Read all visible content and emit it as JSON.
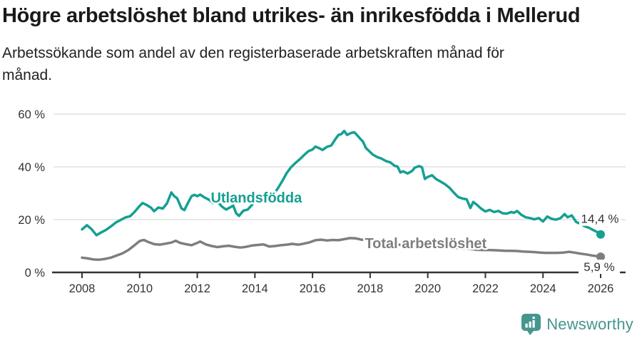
{
  "chart_data": {
    "type": "line",
    "title": "Högre arbetslöshet bland utrikes- än inrikesfödda i Mellerud",
    "subtitle": "Arbetssökande som andel av den registerbaserade arbetskraften månad för månad.",
    "xlabel": "",
    "ylabel": "",
    "xlim": [
      2008,
      2026
    ],
    "ylim": [
      0,
      60
    ],
    "grid": "horizontal",
    "x_ticks": [
      2008,
      2010,
      2012,
      2014,
      2016,
      2018,
      2020,
      2022,
      2024,
      2026
    ],
    "x_tick_labels": [
      "2008",
      "2010",
      "2012",
      "2014",
      "2016",
      "2018",
      "2020",
      "2022",
      "2024",
      "2026"
    ],
    "y_ticks": [
      0,
      20,
      40,
      60
    ],
    "y_tick_labels": [
      "0 %",
      "20 %",
      "40 %",
      "60 %"
    ],
    "series": [
      {
        "name": "Total arbetslöshet",
        "color": "#7E7E7E",
        "end_value_label": "5,9 %",
        "end_value": 5.9,
        "label_anchor": [
          2019.93,
          11.1
        ],
        "points": [
          [
            2008.0,
            5.6
          ],
          [
            2008.2,
            5.3
          ],
          [
            2008.4,
            4.9
          ],
          [
            2008.6,
            4.8
          ],
          [
            2008.8,
            5.1
          ],
          [
            2009.0,
            5.6
          ],
          [
            2009.2,
            6.4
          ],
          [
            2009.4,
            7.2
          ],
          [
            2009.6,
            8.4
          ],
          [
            2009.8,
            10.1
          ],
          [
            2010.0,
            11.9
          ],
          [
            2010.15,
            12.3
          ],
          [
            2010.3,
            11.5
          ],
          [
            2010.5,
            10.7
          ],
          [
            2010.7,
            10.5
          ],
          [
            2010.9,
            10.9
          ],
          [
            2011.1,
            11.3
          ],
          [
            2011.25,
            12.0
          ],
          [
            2011.4,
            11.2
          ],
          [
            2011.6,
            10.7
          ],
          [
            2011.8,
            10.3
          ],
          [
            2012.0,
            11.2
          ],
          [
            2012.1,
            11.7
          ],
          [
            2012.3,
            10.6
          ],
          [
            2012.5,
            10.0
          ],
          [
            2012.7,
            9.6
          ],
          [
            2012.9,
            9.9
          ],
          [
            2013.1,
            10.1
          ],
          [
            2013.3,
            9.7
          ],
          [
            2013.5,
            9.4
          ],
          [
            2013.7,
            9.7
          ],
          [
            2013.9,
            10.2
          ],
          [
            2014.1,
            10.4
          ],
          [
            2014.3,
            10.6
          ],
          [
            2014.5,
            9.8
          ],
          [
            2014.7,
            10.0
          ],
          [
            2014.9,
            10.3
          ],
          [
            2015.1,
            10.5
          ],
          [
            2015.3,
            10.8
          ],
          [
            2015.5,
            10.5
          ],
          [
            2015.7,
            10.9
          ],
          [
            2015.9,
            11.4
          ],
          [
            2016.1,
            12.2
          ],
          [
            2016.3,
            12.4
          ],
          [
            2016.5,
            12.1
          ],
          [
            2016.7,
            12.3
          ],
          [
            2016.9,
            12.2
          ],
          [
            2017.1,
            12.6
          ],
          [
            2017.3,
            13.0
          ],
          [
            2017.5,
            12.9
          ],
          [
            2017.7,
            12.4
          ],
          [
            2017.9,
            12.2
          ],
          [
            2018.1,
            11.8
          ],
          [
            2018.3,
            11.5
          ],
          [
            2018.5,
            11.3
          ],
          [
            2018.7,
            11.0
          ],
          [
            2018.9,
            10.7
          ],
          [
            2019.1,
            10.3
          ],
          [
            2019.3,
            10.1
          ],
          [
            2019.5,
            10.0
          ],
          [
            2019.7,
            9.9
          ],
          [
            2019.9,
            9.6
          ],
          [
            2020.1,
            9.8
          ],
          [
            2020.3,
            10.0
          ],
          [
            2020.5,
            9.9
          ],
          [
            2020.7,
            9.7
          ],
          [
            2020.9,
            9.4
          ],
          [
            2021.1,
            9.2
          ],
          [
            2021.3,
            9.0
          ],
          [
            2021.5,
            8.8
          ],
          [
            2021.7,
            8.6
          ],
          [
            2021.9,
            8.5
          ],
          [
            2022.1,
            8.5
          ],
          [
            2022.3,
            8.4
          ],
          [
            2022.5,
            8.3
          ],
          [
            2022.7,
            8.2
          ],
          [
            2022.9,
            8.2
          ],
          [
            2023.1,
            8.1
          ],
          [
            2023.3,
            7.9
          ],
          [
            2023.5,
            7.8
          ],
          [
            2023.7,
            7.7
          ],
          [
            2023.9,
            7.5
          ],
          [
            2024.1,
            7.4
          ],
          [
            2024.3,
            7.4
          ],
          [
            2024.5,
            7.4
          ],
          [
            2024.7,
            7.5
          ],
          [
            2024.9,
            7.8
          ],
          [
            2025.1,
            7.5
          ],
          [
            2025.3,
            7.1
          ],
          [
            2025.5,
            6.8
          ],
          [
            2025.7,
            6.4
          ],
          [
            2025.9,
            6.1
          ],
          [
            2026.0,
            5.9
          ]
        ]
      },
      {
        "name": "Utlandsfödda",
        "color": "#14A092",
        "end_value_label": "14,4 %",
        "end_value": 14.4,
        "label_anchor": [
          2014.05,
          28.4
        ],
        "points": [
          [
            2008.0,
            16.3
          ],
          [
            2008.17,
            17.9
          ],
          [
            2008.33,
            16.4
          ],
          [
            2008.5,
            14.1
          ],
          [
            2008.67,
            15.2
          ],
          [
            2008.83,
            16.1
          ],
          [
            2009.0,
            17.4
          ],
          [
            2009.17,
            18.9
          ],
          [
            2009.33,
            19.8
          ],
          [
            2009.5,
            20.8
          ],
          [
            2009.67,
            21.3
          ],
          [
            2009.83,
            23.0
          ],
          [
            2010.0,
            25.2
          ],
          [
            2010.1,
            26.3
          ],
          [
            2010.25,
            25.5
          ],
          [
            2010.4,
            24.5
          ],
          [
            2010.5,
            23.2
          ],
          [
            2010.65,
            24.6
          ],
          [
            2010.8,
            24.2
          ],
          [
            2010.95,
            26.2
          ],
          [
            2011.1,
            30.3
          ],
          [
            2011.2,
            28.9
          ],
          [
            2011.3,
            28.1
          ],
          [
            2011.45,
            24.3
          ],
          [
            2011.55,
            23.6
          ],
          [
            2011.7,
            26.8
          ],
          [
            2011.8,
            28.9
          ],
          [
            2011.9,
            29.4
          ],
          [
            2012.0,
            28.9
          ],
          [
            2012.1,
            29.5
          ],
          [
            2012.25,
            28.4
          ],
          [
            2012.4,
            27.6
          ],
          [
            2012.55,
            26.3
          ],
          [
            2012.7,
            26.9
          ],
          [
            2012.85,
            25.0
          ],
          [
            2013.0,
            23.8
          ],
          [
            2013.15,
            24.7
          ],
          [
            2013.25,
            25.3
          ],
          [
            2013.35,
            22.4
          ],
          [
            2013.45,
            21.4
          ],
          [
            2013.6,
            23.4
          ],
          [
            2013.75,
            23.8
          ],
          [
            2013.9,
            25.6
          ],
          [
            2014.05,
            27.6
          ],
          [
            2014.2,
            28.7
          ],
          [
            2014.35,
            28.2
          ],
          [
            2014.5,
            27.8
          ],
          [
            2014.65,
            29.6
          ],
          [
            2014.8,
            31.9
          ],
          [
            2014.95,
            34.6
          ],
          [
            2015.1,
            37.6
          ],
          [
            2015.25,
            39.8
          ],
          [
            2015.4,
            41.4
          ],
          [
            2015.55,
            42.8
          ],
          [
            2015.7,
            44.4
          ],
          [
            2015.85,
            45.9
          ],
          [
            2016.0,
            46.6
          ],
          [
            2016.1,
            47.7
          ],
          [
            2016.25,
            47.0
          ],
          [
            2016.35,
            46.4
          ],
          [
            2016.5,
            47.6
          ],
          [
            2016.65,
            48.1
          ],
          [
            2016.8,
            50.6
          ],
          [
            2016.9,
            52.1
          ],
          [
            2017.0,
            52.4
          ],
          [
            2017.1,
            53.6
          ],
          [
            2017.2,
            52.1
          ],
          [
            2017.35,
            52.9
          ],
          [
            2017.45,
            53.1
          ],
          [
            2017.55,
            52.0
          ],
          [
            2017.65,
            50.7
          ],
          [
            2017.75,
            49.6
          ],
          [
            2017.85,
            47.2
          ],
          [
            2017.95,
            46.1
          ],
          [
            2018.1,
            44.6
          ],
          [
            2018.25,
            43.7
          ],
          [
            2018.4,
            43.1
          ],
          [
            2018.55,
            42.2
          ],
          [
            2018.7,
            41.7
          ],
          [
            2018.85,
            40.4
          ],
          [
            2018.95,
            40.1
          ],
          [
            2019.05,
            37.9
          ],
          [
            2019.15,
            38.3
          ],
          [
            2019.3,
            37.5
          ],
          [
            2019.45,
            38.4
          ],
          [
            2019.55,
            39.7
          ],
          [
            2019.7,
            40.3
          ],
          [
            2019.8,
            39.8
          ],
          [
            2019.9,
            35.4
          ],
          [
            2020.0,
            36.2
          ],
          [
            2020.15,
            36.8
          ],
          [
            2020.3,
            35.3
          ],
          [
            2020.45,
            34.4
          ],
          [
            2020.6,
            33.4
          ],
          [
            2020.75,
            32.1
          ],
          [
            2020.9,
            30.3
          ],
          [
            2021.05,
            28.6
          ],
          [
            2021.2,
            28.0
          ],
          [
            2021.35,
            27.7
          ],
          [
            2021.48,
            24.4
          ],
          [
            2021.58,
            26.7
          ],
          [
            2021.72,
            25.5
          ],
          [
            2021.85,
            24.2
          ],
          [
            2022.0,
            23.1
          ],
          [
            2022.15,
            23.7
          ],
          [
            2022.3,
            22.9
          ],
          [
            2022.45,
            23.3
          ],
          [
            2022.6,
            22.4
          ],
          [
            2022.75,
            22.3
          ],
          [
            2022.9,
            22.9
          ],
          [
            2023.0,
            22.6
          ],
          [
            2023.1,
            23.3
          ],
          [
            2023.25,
            21.8
          ],
          [
            2023.4,
            20.9
          ],
          [
            2023.55,
            20.6
          ],
          [
            2023.7,
            20.1
          ],
          [
            2023.85,
            20.6
          ],
          [
            2024.0,
            19.3
          ],
          [
            2024.15,
            21.2
          ],
          [
            2024.3,
            20.3
          ],
          [
            2024.45,
            20.0
          ],
          [
            2024.6,
            20.5
          ],
          [
            2024.75,
            22.1
          ],
          [
            2024.85,
            20.9
          ],
          [
            2025.0,
            21.6
          ],
          [
            2025.15,
            19.1
          ],
          [
            2025.3,
            18.4
          ],
          [
            2025.45,
            17.5
          ],
          [
            2025.6,
            16.9
          ],
          [
            2025.75,
            16.0
          ],
          [
            2025.9,
            15.2
          ],
          [
            2026.0,
            14.4
          ]
        ]
      }
    ]
  },
  "footer": {
    "brand": "Newsworthy"
  }
}
